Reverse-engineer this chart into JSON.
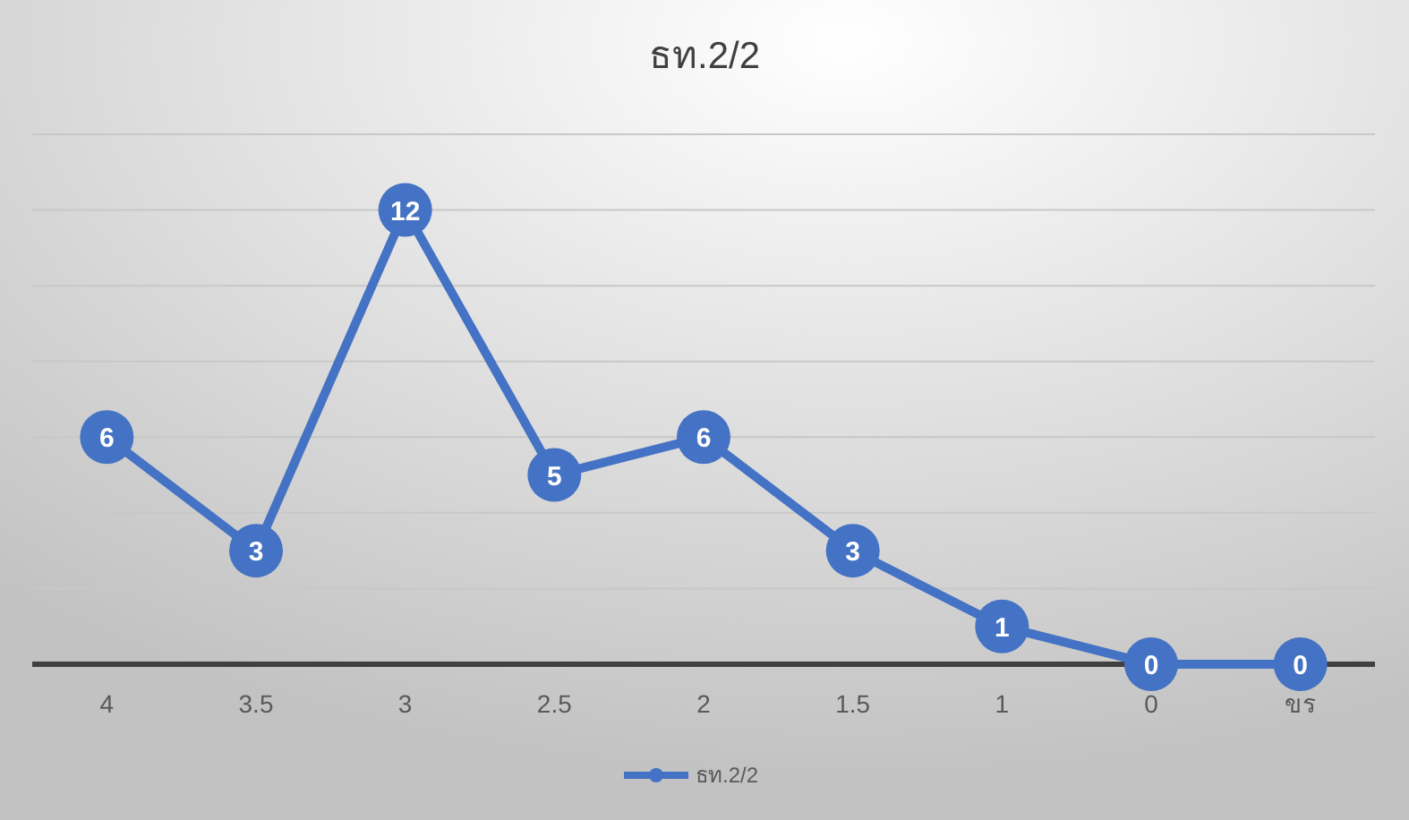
{
  "chart_data": {
    "type": "line",
    "title": "ธท.2/2",
    "categories": [
      "4",
      "3.5",
      "3",
      "2.5",
      "2",
      "1.5",
      "1",
      "0",
      "ขร"
    ],
    "series": [
      {
        "name": "ธท.2/2",
        "color": "#4472c4",
        "values": [
          6,
          3,
          12,
          5,
          6,
          3,
          1,
          0,
          0
        ]
      }
    ],
    "ylim": [
      0,
      14
    ],
    "yticks": [
      {
        "value": 0,
        "label": null
      },
      {
        "value": 2,
        "label": null
      },
      {
        "value": 4,
        "label": null
      },
      {
        "value": 6,
        "label": null
      },
      {
        "value": 8,
        "label": null
      },
      {
        "value": 10,
        "label": null
      },
      {
        "value": 12,
        "label": null
      },
      {
        "value": 14,
        "label": null
      }
    ],
    "tick_labels": "x",
    "grid": "y",
    "legend": "bottom",
    "marker": "circle",
    "line_style": "solid",
    "data_labels": true
  }
}
